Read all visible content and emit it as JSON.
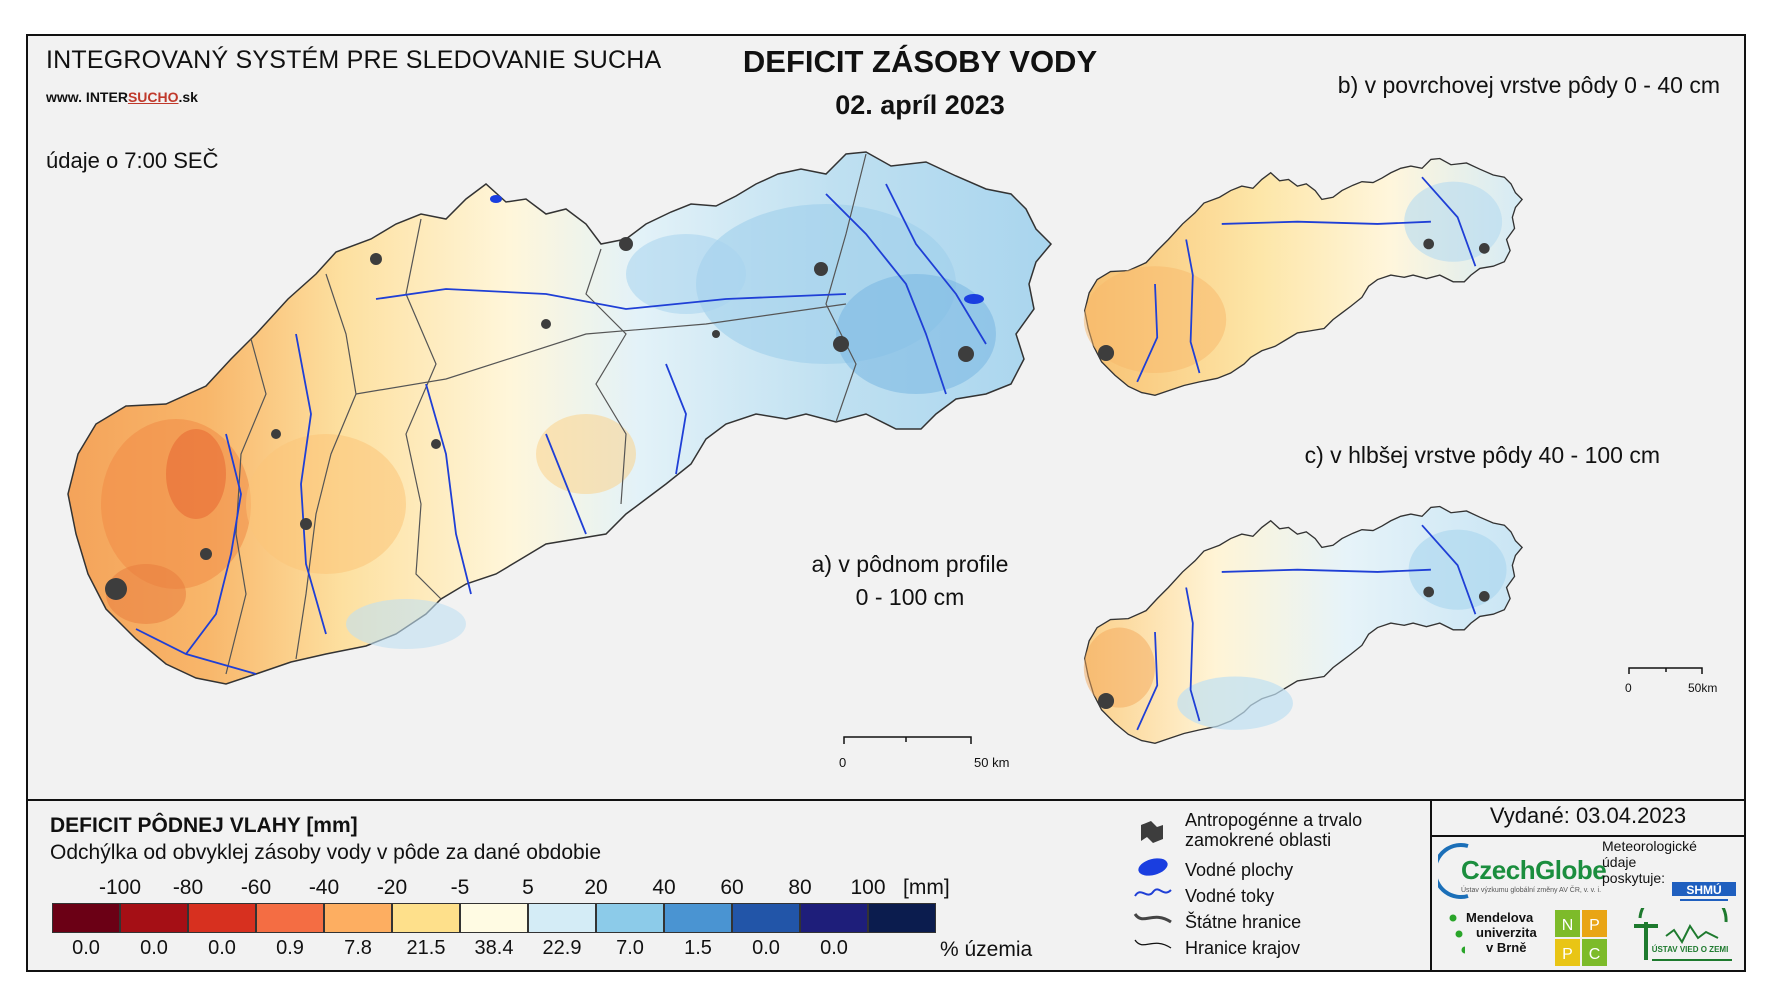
{
  "header": {
    "system_title": "INTEGROVANÝ SYSTÉM PRE SLEDOVANIE SUCHA",
    "url_prefix": "www. INTER",
    "url_highlight": "SUCHO",
    "url_suffix": ".sk",
    "time_note": "údaje o 7:00 SEČ",
    "title": "DEFICIT ZÁSOBY VODY",
    "date": "02. apríl 2023"
  },
  "maps": {
    "a_line1": "a) v pôdnom profile",
    "a_line2": "0 - 100 cm",
    "b": "b) v povrchovej vrstve pôdy 0 - 40 cm",
    "c": "c) v hlbšej vrstve pôdy 40 - 100 cm",
    "scale_main_zero": "0",
    "scale_main_end": "50 km",
    "scale_small_zero": "0",
    "scale_small_end": "50km"
  },
  "legend": {
    "title": "DEFICIT PÔDNEJ VLAHY [mm]",
    "subtitle": "Odchýlka od obvyklej zásoby vody v pôde za dané obdobie",
    "unit": "[mm]",
    "percent_unit": "% územia",
    "ticks": [
      "-100",
      "-80",
      "-60",
      "-40",
      "-20",
      "-5",
      "5",
      "20",
      "40",
      "60",
      "80",
      "100"
    ],
    "colors": [
      "#6b0015",
      "#a50f15",
      "#d7301f",
      "#f46d43",
      "#fdae61",
      "#fee08b",
      "#fffbe3",
      "#d4ecf6",
      "#8ccbe9",
      "#4a94d2",
      "#2255a8",
      "#1e1e7a",
      "#0b1c4e"
    ],
    "percentages": [
      "0.0",
      "0.0",
      "0.0",
      "0.9",
      "7.8",
      "21.5",
      "38.4",
      "22.9",
      "7.0",
      "1.5",
      "0.0",
      "0.0"
    ]
  },
  "map_legend": {
    "anthropogenic": "Antropogénne a trvalo zamokrené oblasti",
    "water_bodies": "Vodné plochy",
    "rivers": "Vodné toky",
    "state_border": "Štátne hranice",
    "regional_border": "Hranice krajov"
  },
  "issued": "Vydané: 03.04.2023",
  "logos": {
    "czechglobe": "CzechGlobe",
    "czechglobe_sub": "Ústav výzkumu globální změny AV ČR, v. v. i.",
    "meteo": [
      "Meteorologické",
      "údaje",
      "poskytuje:"
    ],
    "shmu": "SHMÚ",
    "mendel": [
      "Mendelova",
      "univerzita",
      "v Brně"
    ],
    "nppc": [
      "N",
      "P",
      "P",
      "C"
    ],
    "uvz": "ÚSTAV VIED O ZEMI"
  }
}
